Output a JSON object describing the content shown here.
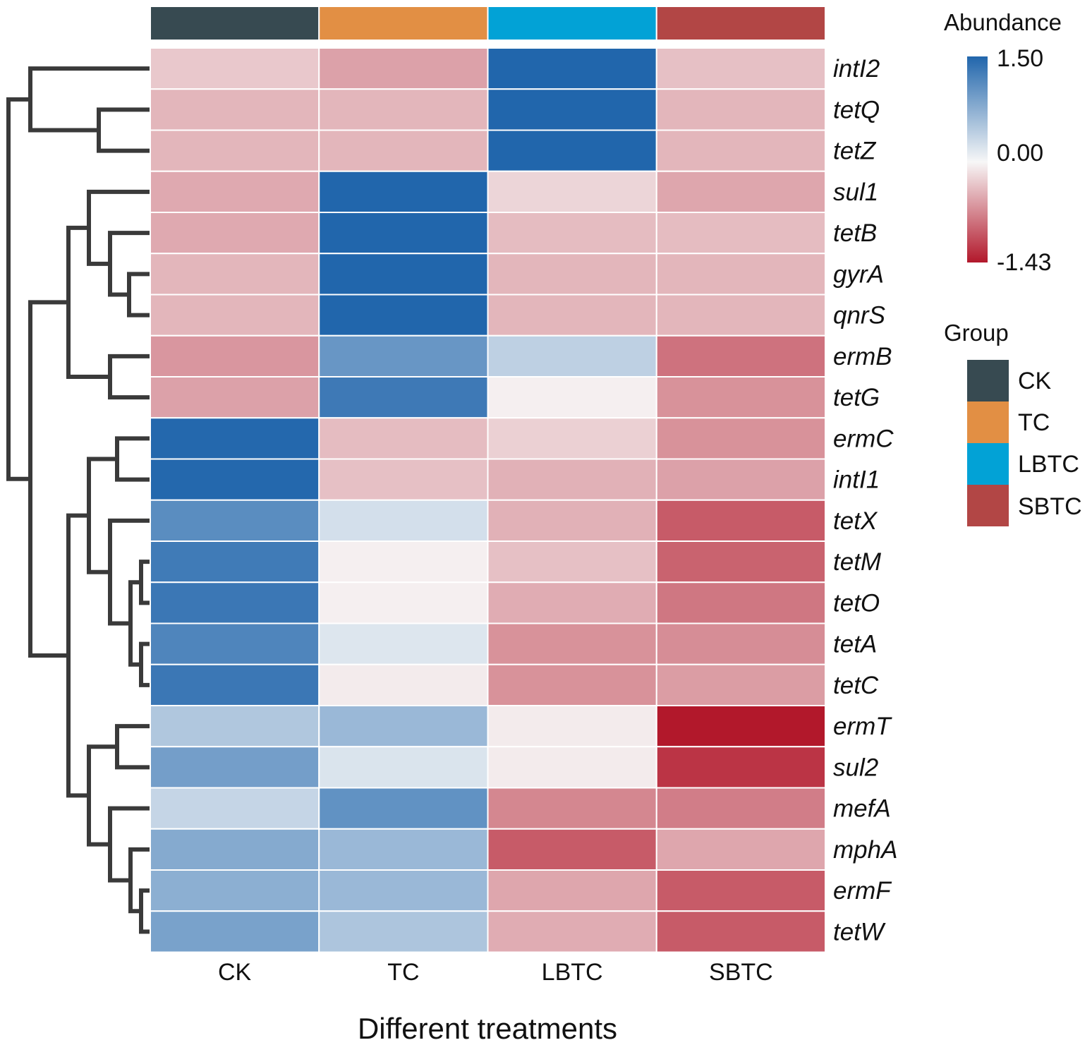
{
  "chart_data": {
    "type": "heatmap",
    "title": "",
    "xlabel": "Different treatments",
    "ylabel": "",
    "columns": [
      "CK",
      "TC",
      "LBTC",
      "SBTC"
    ],
    "rows": [
      "intI2",
      "tetQ",
      "tetZ",
      "sul1",
      "tetB",
      "gyrA",
      "qnrS",
      "ermB",
      "tetG",
      "ermC",
      "intI1",
      "tetX",
      "tetM",
      "tetO",
      "tetA",
      "tetC",
      "ermT",
      "sul2",
      "mefA",
      "mphA",
      "ermF",
      "tetW"
    ],
    "values": [
      [
        -0.3,
        -0.55,
        1.5,
        -0.35
      ],
      [
        -0.42,
        -0.42,
        1.5,
        -0.42
      ],
      [
        -0.42,
        -0.42,
        1.5,
        -0.42
      ],
      [
        -0.5,
        1.5,
        -0.22,
        -0.52
      ],
      [
        -0.5,
        1.5,
        -0.38,
        -0.38
      ],
      [
        -0.42,
        1.5,
        -0.42,
        -0.42
      ],
      [
        -0.42,
        1.5,
        -0.42,
        -0.42
      ],
      [
        -0.62,
        1.0,
        0.4,
        -0.85
      ],
      [
        -0.55,
        1.3,
        -0.05,
        -0.65
      ],
      [
        1.48,
        -0.38,
        -0.25,
        -0.65
      ],
      [
        1.48,
        -0.35,
        -0.45,
        -0.55
      ],
      [
        1.1,
        0.25,
        -0.45,
        -1.0
      ],
      [
        1.28,
        -0.05,
        -0.35,
        -0.95
      ],
      [
        1.32,
        -0.05,
        -0.48,
        -0.82
      ],
      [
        1.18,
        0.18,
        -0.65,
        -0.68
      ],
      [
        1.32,
        -0.08,
        -0.65,
        -0.58
      ],
      [
        0.5,
        0.65,
        -0.08,
        -1.43
      ],
      [
        0.92,
        0.2,
        -0.08,
        -1.25
      ],
      [
        0.35,
        1.05,
        -0.72,
        -0.78
      ],
      [
        0.8,
        0.65,
        -1.0,
        -0.52
      ],
      [
        0.75,
        0.65,
        -0.52,
        -1.0
      ],
      [
        0.88,
        0.52,
        -0.48,
        -1.0
      ]
    ],
    "color_scale": {
      "min": -1.43,
      "max": 1.5,
      "mid": 0.0,
      "min_color": "#b2182b",
      "mid_color": "#f7f7f7",
      "max_color": "#2166ac"
    },
    "row_dendrogram": true,
    "legend_position": "right"
  },
  "legend": {
    "abundance_title": "Abundance",
    "tick_max": "1.50",
    "tick_mid": "0.00",
    "tick_min": "-1.43",
    "group_title": "Group",
    "groups": [
      {
        "label": "CK",
        "color": "#374a51"
      },
      {
        "label": "TC",
        "color": "#e28f44"
      },
      {
        "label": "LBTC",
        "color": "#02a2d6"
      },
      {
        "label": "SBTC",
        "color": "#b24645"
      }
    ]
  }
}
